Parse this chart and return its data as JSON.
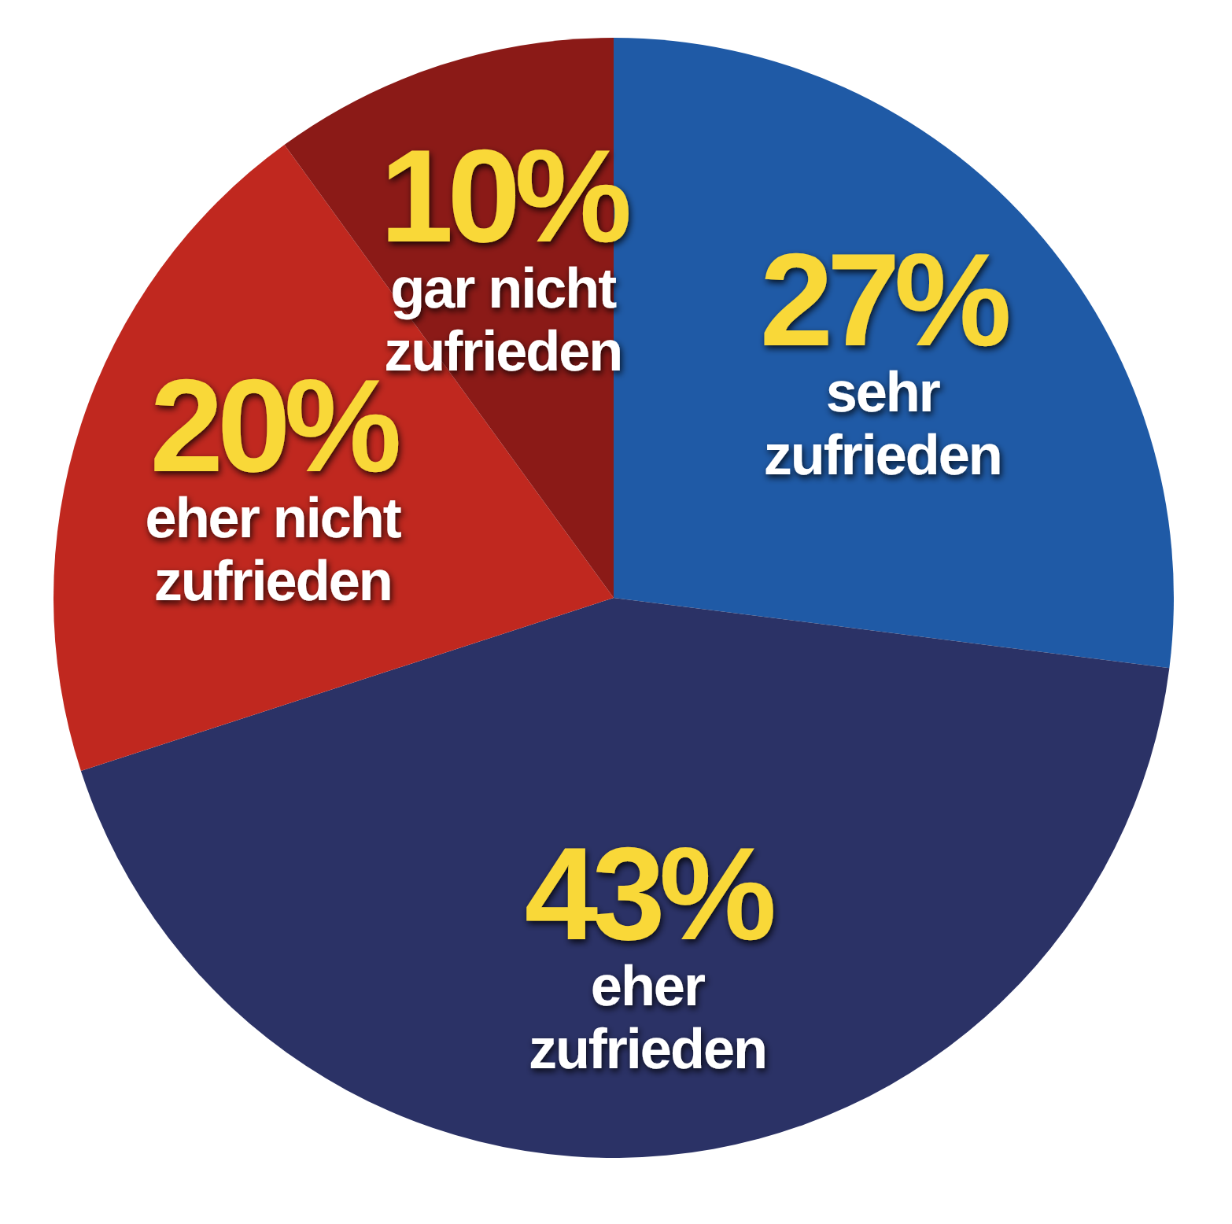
{
  "chart_data": {
    "type": "pie",
    "categories": [
      "sehr zufrieden",
      "eher zufrieden",
      "eher nicht zufrieden",
      "gar nicht zufrieden"
    ],
    "values": [
      27,
      43,
      20,
      10
    ],
    "value_labels": [
      "27%",
      "43%",
      "20%",
      "10%"
    ],
    "colors": [
      "#1f5aa6",
      "#2b3266",
      "#c0281f",
      "#8b1a17"
    ]
  }
}
